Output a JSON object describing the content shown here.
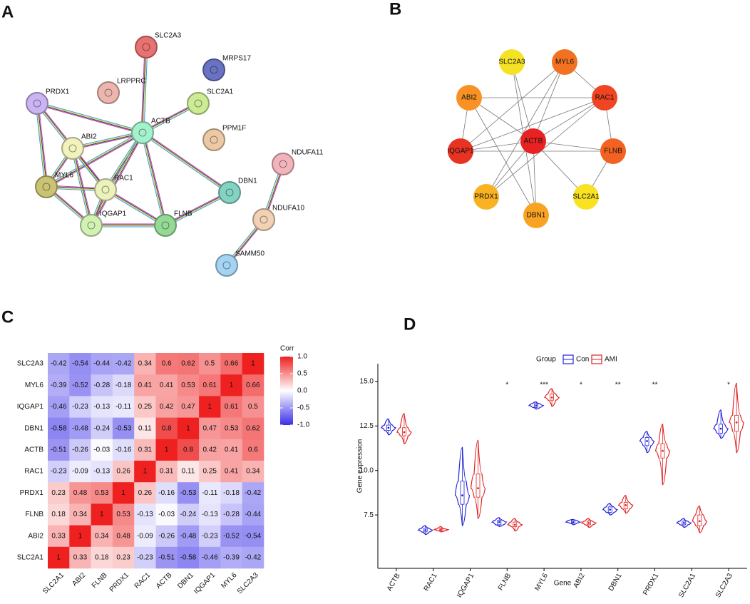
{
  "network_a": {
    "label": "A",
    "nodes": [
      {
        "label": "SLC2A3",
        "color": "#e87272"
      },
      {
        "label": "MRPS17",
        "color": "#6a72c4"
      },
      {
        "label": "LRPPRC",
        "color": "#ecb6ae"
      },
      {
        "label": "PRDX1",
        "color": "#cab4f2"
      },
      {
        "label": "SLC2A1",
        "color": "#cbeb94"
      },
      {
        "label": "ACTB",
        "color": "#a4f2cc"
      },
      {
        "label": "PPM1F",
        "color": "#ecc9a4"
      },
      {
        "label": "ABI2",
        "color": "#f2f2bc"
      },
      {
        "label": "NDUFA11",
        "color": "#f2b4bc"
      },
      {
        "label": "MYL6",
        "color": "#cbc374"
      },
      {
        "label": "RAC1",
        "color": "#ebf2bc"
      },
      {
        "label": "DBN1",
        "color": "#84d2c2"
      },
      {
        "label": "NDUFA10",
        "color": "#f2d2b4"
      },
      {
        "label": "IQGAP1",
        "color": "#d2f2b4"
      },
      {
        "label": "FLNB",
        "color": "#94da94"
      },
      {
        "label": "SAMM50",
        "color": "#a4d4f2"
      }
    ]
  },
  "network_b": {
    "label": "B",
    "nodes": [
      {
        "label": "SLC2A3",
        "color": "#f6e224"
      },
      {
        "label": "MYL6",
        "color": "#f27222"
      },
      {
        "label": "ABI2",
        "color": "#f89224"
      },
      {
        "label": "RAC1",
        "color": "#f04422"
      },
      {
        "label": "IQGAP1",
        "color": "#e83222"
      },
      {
        "label": "ACTB",
        "color": "#e82222"
      },
      {
        "label": "FLNB",
        "color": "#f26222"
      },
      {
        "label": "PRDX1",
        "color": "#f8b222"
      },
      {
        "label": "SLC2A1",
        "color": "#f8e222"
      },
      {
        "label": "DBN1",
        "color": "#f8a422"
      }
    ]
  },
  "chart_data": [
    {
      "type": "heatmap",
      "label": "C",
      "rows": [
        "SLC2A3",
        "MYL6",
        "IQGAP1",
        "DBN1",
        "ACTB",
        "RAC1",
        "PRDX1",
        "FLNB",
        "ABI2",
        "SLC2A1"
      ],
      "columns": [
        "SLC2A1",
        "ABI2",
        "FLNB",
        "PRDX1",
        "RAC1",
        "ACTB",
        "DBN1",
        "IQGAP1",
        "MYL6",
        "SLC2A3"
      ],
      "values": [
        [
          -0.42,
          -0.54,
          -0.44,
          -0.42,
          0.34,
          0.6,
          0.62,
          0.5,
          0.66,
          1
        ],
        [
          -0.39,
          -0.52,
          -0.28,
          -0.18,
          0.41,
          0.41,
          0.53,
          0.61,
          1,
          0.66
        ],
        [
          -0.46,
          -0.23,
          -0.13,
          -0.11,
          0.25,
          0.42,
          0.47,
          1,
          0.61,
          0.5
        ],
        [
          -0.58,
          -0.48,
          -0.24,
          -0.53,
          0.11,
          0.8,
          1,
          0.47,
          0.53,
          0.62
        ],
        [
          -0.51,
          -0.26,
          -0.03,
          -0.16,
          0.31,
          1,
          0.8,
          0.42,
          0.41,
          0.6
        ],
        [
          -0.23,
          -0.09,
          -0.13,
          0.26,
          1,
          0.31,
          0.11,
          0.25,
          0.41,
          0.34
        ],
        [
          0.23,
          0.48,
          0.53,
          1,
          0.26,
          -0.16,
          -0.53,
          -0.11,
          -0.18,
          -0.42
        ],
        [
          0.18,
          0.34,
          1,
          0.53,
          -0.13,
          -0.03,
          -0.24,
          -0.13,
          -0.28,
          -0.44
        ],
        [
          0.33,
          1,
          0.34,
          0.48,
          -0.09,
          -0.26,
          -0.48,
          -0.23,
          -0.52,
          -0.54
        ],
        [
          1,
          0.33,
          0.18,
          0.23,
          -0.23,
          -0.51,
          -0.58,
          -0.46,
          -0.39,
          -0.42
        ]
      ],
      "legend_title": "Corr",
      "zlim": [
        -1,
        1
      ],
      "zticks": [
        {
          "value": 1,
          "label": "1.0"
        },
        0.5,
        {
          "value": 0,
          "label": "0.0"
        },
        -0.5,
        {
          "value": -1,
          "label": "-1.0"
        }
      ],
      "colors": {
        "low": "#3a2ee8",
        "mid": "#ffffff",
        "high": "#ee2020"
      }
    },
    {
      "type": "violin",
      "label": "D",
      "legend_title": "Group",
      "categories": [
        "ACTB",
        "RAC1",
        "IQGAP1",
        "FLNB",
        "MYL6",
        "ABI2",
        "DBN1",
        "PRDX1",
        "SLC2A1",
        "SLC2A3"
      ],
      "significance": [
        null,
        null,
        null,
        "*",
        "***",
        "*",
        "**",
        "**",
        null,
        "*"
      ],
      "series": [
        {
          "name": "Con",
          "color": "#2222d8",
          "stats": [
            [
              12.0,
              12.25,
              12.4,
              12.55,
              12.9
            ],
            [
              6.4,
              6.55,
              6.65,
              6.75,
              6.9
            ],
            [
              6.9,
              8.1,
              8.6,
              9.4,
              11.3
            ],
            [
              6.85,
              6.95,
              7.1,
              7.2,
              7.35
            ],
            [
              13.45,
              13.55,
              13.65,
              13.75,
              13.85
            ],
            [
              6.95,
              7.05,
              7.1,
              7.2,
              7.25
            ],
            [
              7.5,
              7.65,
              7.8,
              7.95,
              8.15
            ],
            [
              11.0,
              11.4,
              11.65,
              11.85,
              12.2
            ],
            [
              6.8,
              6.95,
              7.05,
              7.15,
              7.3
            ],
            [
              11.8,
              12.1,
              12.35,
              12.6,
              13.4
            ]
          ]
        },
        {
          "name": "AMI",
          "color": "#e02222",
          "stats": [
            [
              11.5,
              11.95,
              12.15,
              12.4,
              13.2
            ],
            [
              6.55,
              6.62,
              6.68,
              6.72,
              6.85
            ],
            [
              7.3,
              8.5,
              9.0,
              9.8,
              11.7
            ],
            [
              6.6,
              6.85,
              6.95,
              7.1,
              7.3
            ],
            [
              13.6,
              13.95,
              14.1,
              14.3,
              14.6
            ],
            [
              6.8,
              6.95,
              7.05,
              7.15,
              7.3
            ],
            [
              7.6,
              7.85,
              8.05,
              8.2,
              8.6
            ],
            [
              9.2,
              10.7,
              11.1,
              11.5,
              12.6
            ],
            [
              6.5,
              6.9,
              7.15,
              7.5,
              8.0
            ],
            [
              11.0,
              12.2,
              12.7,
              13.1,
              14.9
            ]
          ]
        }
      ],
      "xlabel": "Gene",
      "ylabel": "Gene expression",
      "ylim": [
        4.5,
        16
      ],
      "yticks": [
        {
          "value": 15,
          "label": "15.0"
        },
        12.5,
        {
          "value": 10,
          "label": "10.0"
        },
        7.5
      ]
    }
  ]
}
